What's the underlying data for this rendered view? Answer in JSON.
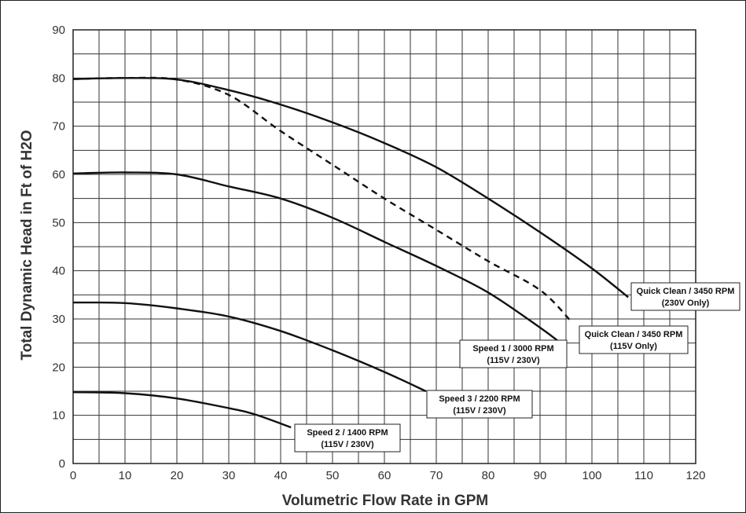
{
  "chart_data": {
    "type": "line",
    "title": "",
    "xlabel": "Volumetric Flow Rate in GPM",
    "ylabel": "Total Dynamic Head in Ft of H2O",
    "xlim": [
      0,
      120
    ],
    "ylim": [
      0,
      90
    ],
    "x_ticks": [
      "0",
      "10",
      "20",
      "30",
      "40",
      "50",
      "60",
      "70",
      "80",
      "90",
      "100",
      "110",
      "120"
    ],
    "y_ticks": [
      "0",
      "10",
      "20",
      "30",
      "40",
      "50",
      "60",
      "70",
      "80",
      "90"
    ],
    "grid": true,
    "legend": "none",
    "series": [
      {
        "line1": "Quick Clean / 3450 RPM",
        "line2": "(230V Only)",
        "style": "solid",
        "points": [
          [
            0,
            79.8
          ],
          [
            10,
            80
          ],
          [
            20,
            79.7
          ],
          [
            30,
            77.5
          ],
          [
            40,
            74.5
          ],
          [
            50,
            70.8
          ],
          [
            60,
            66.5
          ],
          [
            70,
            61.5
          ],
          [
            80,
            55
          ],
          [
            90,
            48
          ],
          [
            100,
            40.5
          ],
          [
            107,
            34.5
          ]
        ]
      },
      {
        "line1": "Quick Clean / 3450 RPM",
        "line2": "(115V Only)",
        "style": "dashed",
        "points": [
          [
            0,
            79.8
          ],
          [
            10,
            80
          ],
          [
            20,
            79.7
          ],
          [
            30,
            76.5
          ],
          [
            40,
            69
          ],
          [
            50,
            62
          ],
          [
            60,
            55
          ],
          [
            70,
            48.5
          ],
          [
            80,
            42
          ],
          [
            90,
            36
          ],
          [
            96,
            29.5
          ]
        ]
      },
      {
        "line1": "Speed 1 / 3000 RPM",
        "line2": "(115V / 230V)",
        "style": "solid",
        "points": [
          [
            0,
            60.2
          ],
          [
            10,
            60.4
          ],
          [
            20,
            60
          ],
          [
            30,
            57.5
          ],
          [
            40,
            55
          ],
          [
            50,
            51
          ],
          [
            60,
            46
          ],
          [
            70,
            41
          ],
          [
            80,
            35.5
          ],
          [
            90,
            28.2
          ],
          [
            94,
            25
          ]
        ]
      },
      {
        "line1": "Speed 3 / 2200 RPM",
        "line2": "(115V / 230V)",
        "style": "solid",
        "points": [
          [
            0,
            33.4
          ],
          [
            10,
            33.3
          ],
          [
            20,
            32.2
          ],
          [
            30,
            30.5
          ],
          [
            40,
            27.5
          ],
          [
            50,
            23.5
          ],
          [
            60,
            19
          ],
          [
            68,
            15
          ]
        ]
      },
      {
        "line1": "Speed 2 / 1400 RPM",
        "line2": "(115V / 230V)",
        "style": "solid",
        "points": [
          [
            0,
            14.8
          ],
          [
            10,
            14.6
          ],
          [
            20,
            13.5
          ],
          [
            30,
            11.5
          ],
          [
            35,
            10.2
          ],
          [
            42,
            7.5
          ]
        ]
      }
    ]
  }
}
